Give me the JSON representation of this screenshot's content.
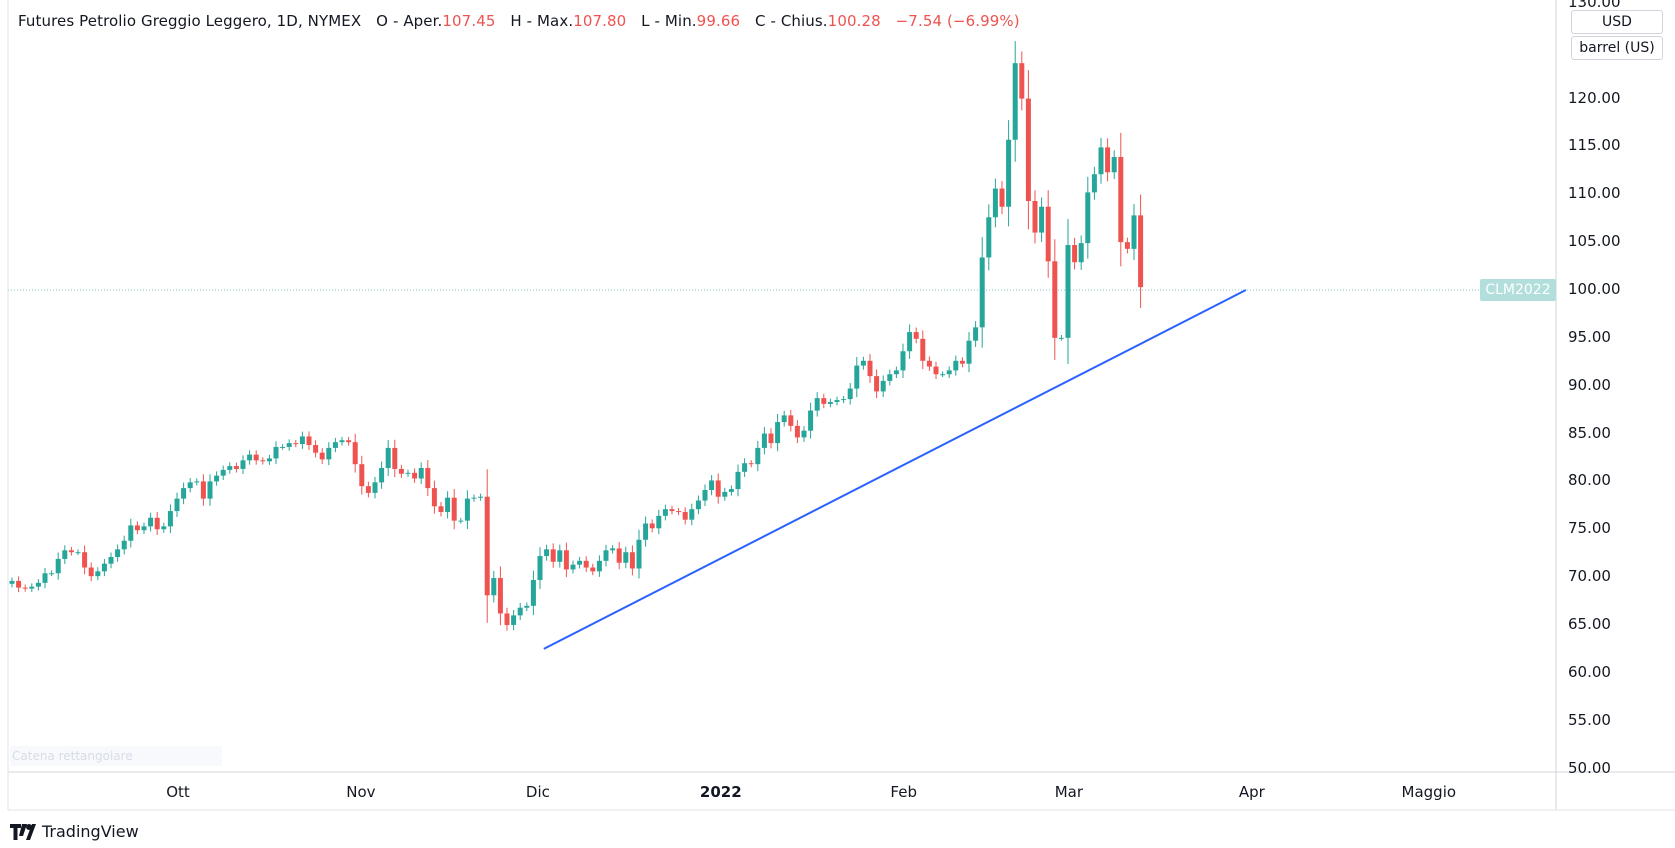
{
  "legend": {
    "title": "Futures Petrolio Greggio Leggero, 1D, NYMEX",
    "o_label": "O",
    "o_prefix": "- Aper.",
    "o_value": "107.45",
    "h_label": "H",
    "h_prefix": "- Max.",
    "h_value": "107.80",
    "l_label": "L",
    "l_prefix": "- Min.",
    "l_value": "99.66",
    "c_label": "C",
    "c_prefix": "- Chius.",
    "c_value": "100.28",
    "change": "−7.54 (−6.99%)"
  },
  "currency": "USD",
  "unit": "barrel (US)",
  "price_tag": "CLM2022",
  "faded_label": "Catena rettangolare",
  "brand": "TradingView",
  "colors": {
    "up": "#26a69a",
    "down": "#ef5350",
    "trendline": "#2962ff",
    "price_line": "#80cbc4"
  },
  "chart_data": {
    "type": "candlestick",
    "y_ticks": [
      "130.00",
      "120.00",
      "115.00",
      "110.00",
      "105.00",
      "100.00",
      "95.00",
      "90.00",
      "85.00",
      "80.00",
      "75.00",
      "70.00",
      "65.00",
      "60.00",
      "55.00",
      "50.00"
    ],
    "x_ticks": [
      {
        "label": "Ott",
        "date": "2021-10-01",
        "bold": false
      },
      {
        "label": "Nov",
        "date": "2021-11-01",
        "bold": false
      },
      {
        "label": "Dic",
        "date": "2021-12-01",
        "bold": false
      },
      {
        "label": "2022",
        "date": "2022-01-01",
        "bold": true
      },
      {
        "label": "Feb",
        "date": "2022-02-01",
        "bold": false
      },
      {
        "label": "Mar",
        "date": "2022-03-01",
        "bold": false
      },
      {
        "label": "Apr",
        "date": "2022-04-01",
        "bold": false
      },
      {
        "label": "Maggio",
        "date": "2022-05-01",
        "bold": false
      }
    ],
    "ylim": [
      50,
      130
    ],
    "last_price": 100.28,
    "trendline": [
      {
        "date": "2021-12-02",
        "price": 62.5
      },
      {
        "date": "2022-03-31",
        "price": 100.0
      }
    ],
    "closes": [
      69.6,
      68.9,
      68.8,
      69.0,
      69.4,
      70.4,
      70.4,
      71.9,
      72.8,
      72.6,
      72.6,
      71.0,
      70.1,
      70.6,
      71.4,
      72.1,
      72.9,
      73.8,
      75.4,
      74.9,
      75.3,
      76.2,
      75.0,
      75.3,
      76.9,
      78.2,
      79.3,
      79.9,
      80.0,
      78.2,
      80.0,
      80.6,
      81.2,
      81.6,
      81.3,
      82.2,
      82.8,
      82.2,
      82.1,
      82.4,
      83.6,
      83.6,
      84.0,
      83.9,
      84.7,
      83.8,
      83.0,
      82.3,
      83.5,
      84.1,
      84.3,
      84.1,
      81.8,
      79.5,
      78.8,
      79.9,
      81.4,
      83.5,
      81.3,
      80.8,
      80.9,
      80.3,
      81.4,
      79.3,
      77.4,
      76.8,
      78.3,
      75.9,
      75.9,
      78.2,
      78.3,
      78.4,
      68.1,
      69.9,
      66.2,
      65.0,
      66.0,
      66.8,
      67.0,
      69.7,
      72.2,
      72.9,
      71.6,
      72.8,
      70.8,
      71.3,
      71.7,
      71.0,
      70.6,
      71.7,
      72.8,
      73.0,
      71.5,
      72.6,
      70.9,
      73.9,
      75.6,
      75.1,
      76.4,
      77.1,
      76.9,
      76.8,
      76.0,
      77.1,
      78.0,
      79.1,
      80.1,
      78.4,
      78.9,
      79.2,
      81.0,
      81.9,
      81.8,
      83.5,
      85.0,
      84.0,
      86.2,
      86.9,
      85.8,
      84.6,
      85.3,
      87.4,
      88.7,
      88.1,
      88.3,
      88.5,
      88.6,
      89.7,
      92.1,
      92.6,
      91.0,
      89.4,
      90.5,
      91.2,
      91.6,
      93.6,
      95.6,
      94.9,
      92.6,
      92.0,
      91.2,
      91.2,
      91.6,
      92.6,
      92.3,
      94.7,
      96.1,
      103.4,
      107.6,
      110.6,
      108.7,
      115.7,
      123.7,
      120.0,
      109.3,
      106.0,
      108.7,
      103.0,
      95.0,
      95.0,
      104.7,
      102.9,
      104.9,
      110.2,
      112.1,
      114.9,
      112.3,
      113.9,
      105.0,
      104.3,
      107.8,
      100.3
    ]
  }
}
